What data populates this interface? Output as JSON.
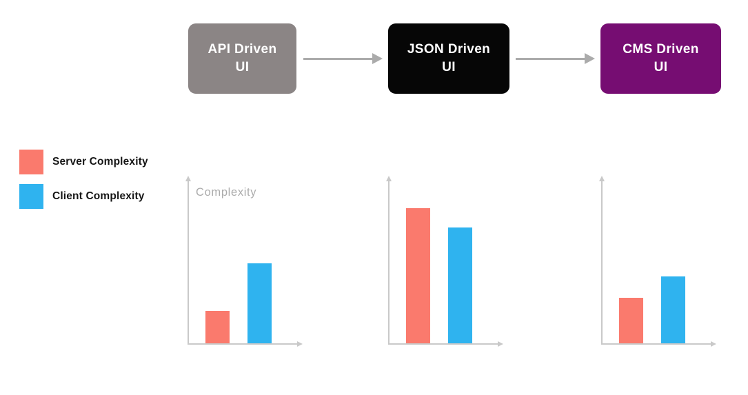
{
  "flow": {
    "steps": [
      {
        "label": "API Driven UI",
        "color": "#8B8585",
        "text_color": "#FFFFFF"
      },
      {
        "label": "JSON Driven UI",
        "color": "#060606",
        "text_color": "#FFFFFF"
      },
      {
        "label": "CMS Driven UI",
        "color": "#760D72",
        "text_color": "#FFFFFF"
      }
    ]
  },
  "legend": {
    "items": [
      {
        "label": "Server Complexity",
        "color": "#FA7A6D"
      },
      {
        "label": "Client Complexity",
        "color": "#2FB3EF"
      }
    ]
  },
  "chart_data": [
    {
      "type": "bar",
      "title": "API Driven UI",
      "ylabel": "Complexity",
      "categories": [
        "Server Complexity",
        "Client Complexity"
      ],
      "values": [
        20,
        49
      ],
      "ylim": [
        0,
        100
      ],
      "grid": false,
      "tick_labels_shown": false,
      "legend_position": "outside-left"
    },
    {
      "type": "bar",
      "title": "JSON Driven UI",
      "ylabel": "",
      "categories": [
        "Server Complexity",
        "Client Complexity"
      ],
      "values": [
        83,
        71
      ],
      "ylim": [
        0,
        100
      ],
      "grid": false,
      "tick_labels_shown": false,
      "legend_position": "outside-left"
    },
    {
      "type": "bar",
      "title": "CMS Driven UI",
      "ylabel": "",
      "categories": [
        "Server Complexity",
        "Client Complexity"
      ],
      "values": [
        28,
        41
      ],
      "ylim": [
        0,
        100
      ],
      "grid": false,
      "tick_labels_shown": false,
      "legend_position": "outside-left"
    }
  ],
  "colors": {
    "server_bar": "#FA7A6D",
    "client_bar": "#2FB3EF",
    "arrow": "#ABABAB",
    "axis": "#C9C9C9",
    "muted_label": "#ACACAC",
    "background": "#FFFFFF"
  }
}
